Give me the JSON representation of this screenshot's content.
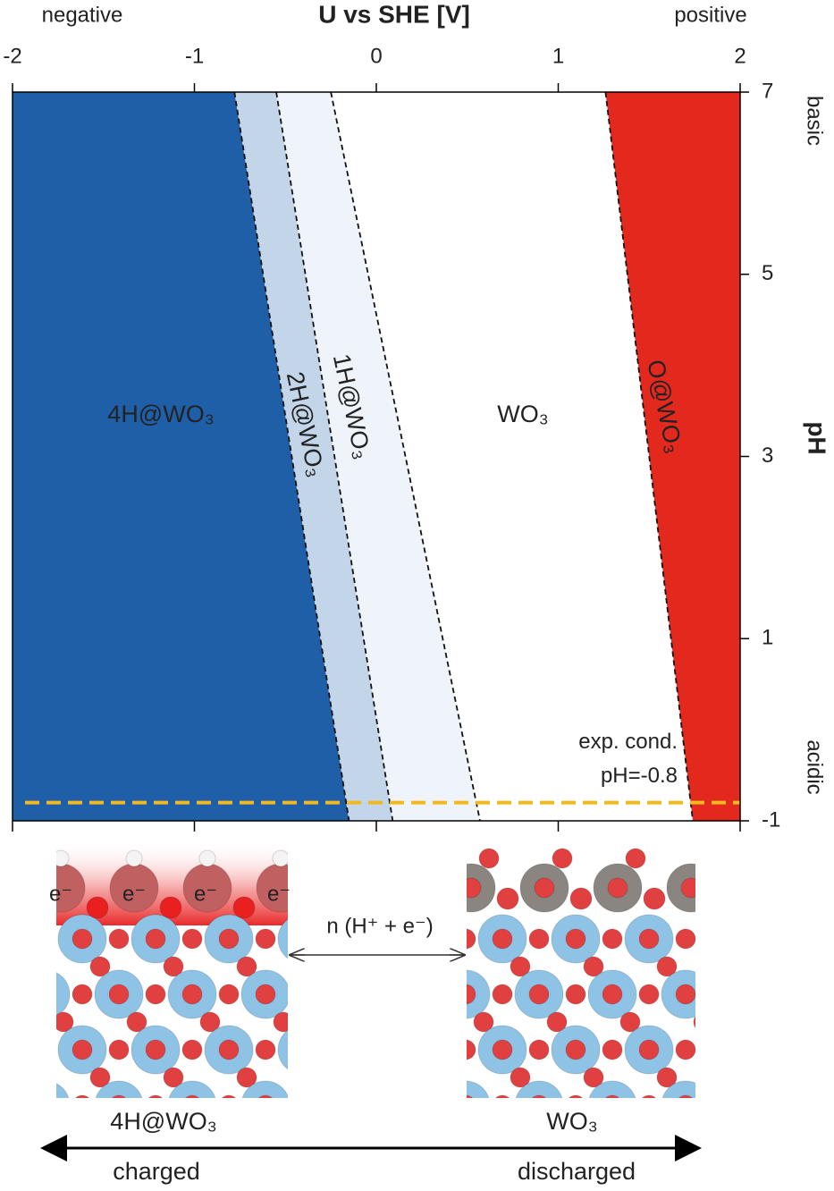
{
  "chart_data": {
    "type": "phase-diagram",
    "xlabel": "U vs SHE [V]",
    "ylabel": "pH",
    "x_annotations": [
      "negative",
      "positive"
    ],
    "y_annotations": [
      "basic",
      "acidic"
    ],
    "xlim": [
      -2,
      2
    ],
    "xticks": [
      -2,
      -1,
      0,
      1,
      2
    ],
    "ylim": [
      -1,
      7
    ],
    "yticks": [
      -1,
      1,
      3,
      5,
      7
    ],
    "regions": [
      {
        "name": "4H@WO₃",
        "color": "#1f5fa8"
      },
      {
        "name": "2H@WO₃",
        "color": "#c3d6e9"
      },
      {
        "name": "1H@WO₃",
        "color": "#eef4fa"
      },
      {
        "name": "WO₃",
        "color": "#ffffff"
      },
      {
        "name": "O@WO₃",
        "color": "#e3281e"
      }
    ],
    "boundaries": [
      {
        "x": [
          -0.78,
          -0.15
        ],
        "y": [
          7,
          -1
        ]
      },
      {
        "x": [
          -0.55,
          0.09
        ],
        "y": [
          7,
          -1
        ]
      },
      {
        "x": [
          -0.25,
          0.57
        ],
        "y": [
          7,
          -1
        ]
      },
      {
        "x": [
          1.26,
          1.74
        ],
        "y": [
          7,
          -1
        ]
      }
    ],
    "reference_line": {
      "y": -0.8,
      "color": "#f2b81f",
      "label": [
        "exp. cond.",
        "pH=-0.8"
      ]
    }
  },
  "illustration": {
    "charged_label": "4H@WO₃",
    "discharged_label": "WO₃",
    "electrons": [
      "e⁻",
      "e⁻",
      "e⁻",
      "e⁻"
    ],
    "reaction": "n (H⁺ + e⁻)",
    "left_caption": "charged",
    "right_caption": "discharged"
  }
}
